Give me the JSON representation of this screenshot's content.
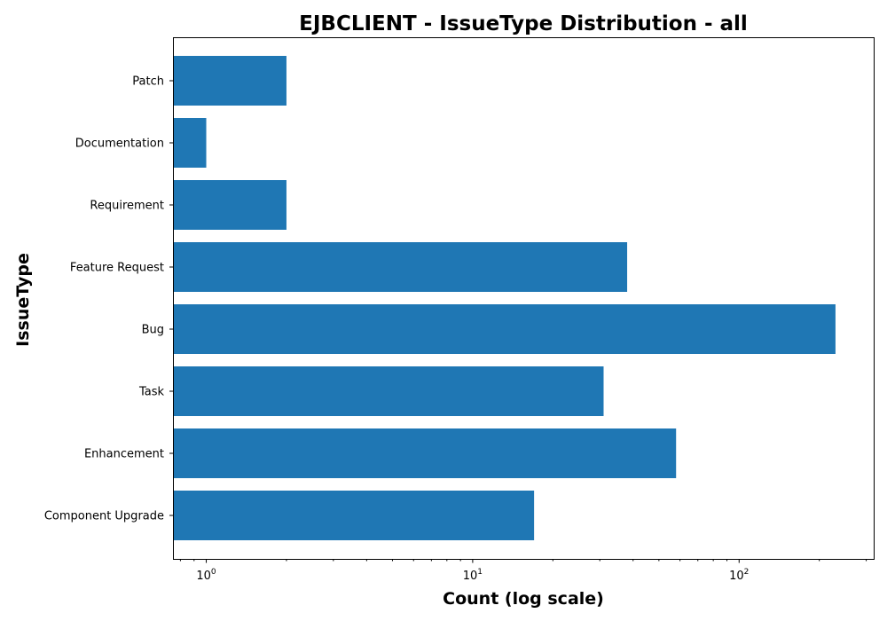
{
  "chart_data": {
    "type": "bar",
    "orientation": "horizontal",
    "title": "EJBCLIENT - IssueType Distribution - all",
    "xlabel": "Count (log scale)",
    "ylabel": "IssueType",
    "xscale": "log",
    "xlim": [
      0.75,
      320
    ],
    "x_major_ticks": [
      {
        "value": 1,
        "base": "10",
        "exp": "0"
      },
      {
        "value": 10,
        "base": "10",
        "exp": "1"
      },
      {
        "value": 100,
        "base": "10",
        "exp": "2"
      }
    ],
    "categories": [
      "Component Upgrade",
      "Enhancement",
      "Task",
      "Bug",
      "Feature Request",
      "Requirement",
      "Documentation",
      "Patch"
    ],
    "values": [
      17,
      58,
      31,
      230,
      38,
      2,
      1,
      2
    ],
    "bar_color": "#1f77b4",
    "grid": false,
    "legend": "none"
  }
}
